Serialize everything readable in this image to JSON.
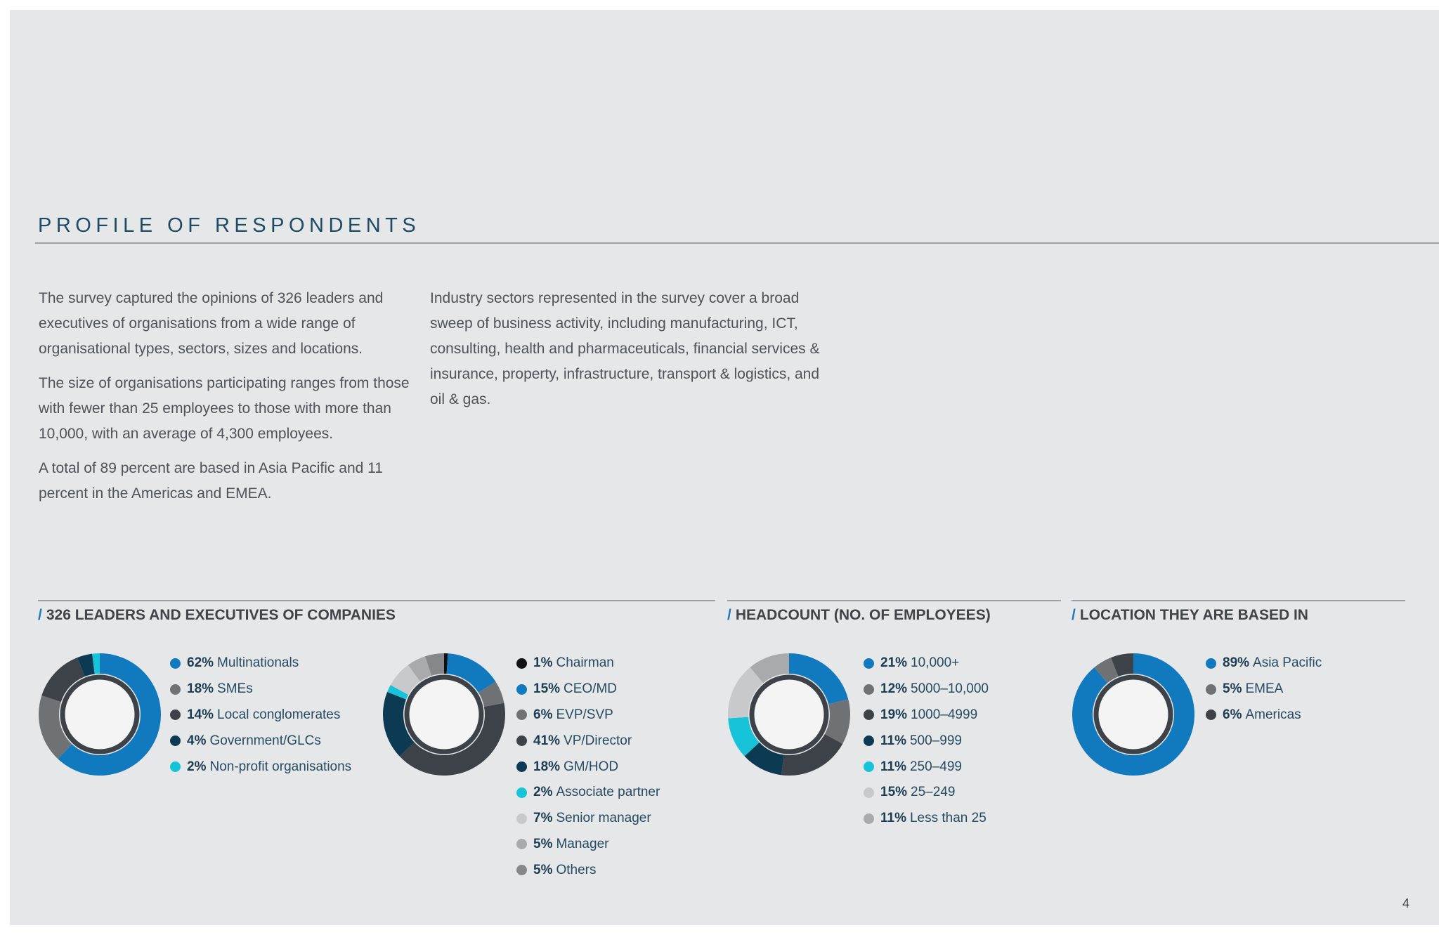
{
  "page": {
    "title": "PROFILE OF RESPONDENTS",
    "page_number": "4"
  },
  "intro": {
    "left": [
      "The survey captured the opinions of 326 leaders and executives of organisations from a wide range of organisational types, sectors, sizes and locations.",
      "The size of organisations participating ranges from those with fewer than 25 employees to those with more than 10,000, with an average of 4,300 employees.",
      "A total of 89 percent are based in Asia Pacific and 11 percent in the Americas and EMEA."
    ],
    "right": [
      "Industry sectors represented in the survey cover a broad sweep of business activity, including manufacturing, ICT, consulting, health and pharmaceuticals, financial services & insurance, property, infrastructure, transport & logistics, and oil & gas."
    ]
  },
  "sections": [
    {
      "slash": "/",
      "title": "326 LEADERS AND EXECUTIVES OF COMPANIES"
    },
    {
      "slash": "/",
      "title": "HEADCOUNT (NO. OF EMPLOYEES)"
    },
    {
      "slash": "/",
      "title": "LOCATION THEY ARE BASED IN"
    }
  ],
  "chart_data": [
    {
      "type": "pie",
      "id": "companies",
      "segments": [
        {
          "pct": "62%",
          "label": "Multinationals",
          "value": 62,
          "color": "#1179be"
        },
        {
          "pct": "18%",
          "label": "SMEs",
          "value": 18,
          "color": "#6f7275"
        },
        {
          "pct": "14%",
          "label": "Local conglomerates",
          "value": 14,
          "color": "#3c4247"
        },
        {
          "pct": "4%",
          "label": "Government/GLCs",
          "value": 4,
          "color": "#0b3a52"
        },
        {
          "pct": "2%",
          "label": "Non-profit organisations",
          "value": 2,
          "color": "#17c3d9"
        }
      ]
    },
    {
      "type": "pie",
      "id": "positions",
      "segments": [
        {
          "pct": "1%",
          "label": "Chairman",
          "value": 1,
          "color": "#111111"
        },
        {
          "pct": "15%",
          "label": "CEO/MD",
          "value": 15,
          "color": "#1179be"
        },
        {
          "pct": "6%",
          "label": "EVP/SVP",
          "value": 6,
          "color": "#6f7275"
        },
        {
          "pct": "41%",
          "label": "VP/Director",
          "value": 41,
          "color": "#3c4247"
        },
        {
          "pct": "18%",
          "label": "GM/HOD",
          "value": 18,
          "color": "#0b3a52"
        },
        {
          "pct": "2%",
          "label": "Associate partner",
          "value": 2,
          "color": "#17c3d9"
        },
        {
          "pct": "7%",
          "label": "Senior manager",
          "value": 7,
          "color": "#c8c9cb"
        },
        {
          "pct": "5%",
          "label": "Manager",
          "value": 5,
          "color": "#a8aaac"
        },
        {
          "pct": "5%",
          "label": "Others",
          "value": 5,
          "color": "#858789"
        }
      ]
    },
    {
      "type": "pie",
      "id": "headcount",
      "segments": [
        {
          "pct": "21%",
          "label": "10,000+",
          "value": 21,
          "color": "#1179be"
        },
        {
          "pct": "12%",
          "label": "5000–10,000",
          "value": 12,
          "color": "#6f7275"
        },
        {
          "pct": "19%",
          "label": "1000–4999",
          "value": 19,
          "color": "#3c4247"
        },
        {
          "pct": "11%",
          "label": "500–999",
          "value": 11,
          "color": "#0b3a52"
        },
        {
          "pct": "11%",
          "label": "250–499",
          "value": 11,
          "color": "#17c3d9"
        },
        {
          "pct": "15%",
          "label": "25–249",
          "value": 15,
          "color": "#c8c9cb"
        },
        {
          "pct": "11%",
          "label": "Less than 25",
          "value": 11,
          "color": "#a8aaac"
        }
      ]
    },
    {
      "type": "pie",
      "id": "location",
      "segments": [
        {
          "pct": "89%",
          "label": "Asia Pacific",
          "value": 89,
          "color": "#1179be"
        },
        {
          "pct": "5%",
          "label": "EMEA",
          "value": 5,
          "color": "#6f7275"
        },
        {
          "pct": "6%",
          "label": "Americas",
          "value": 6,
          "color": "#3c4247"
        }
      ]
    }
  ]
}
